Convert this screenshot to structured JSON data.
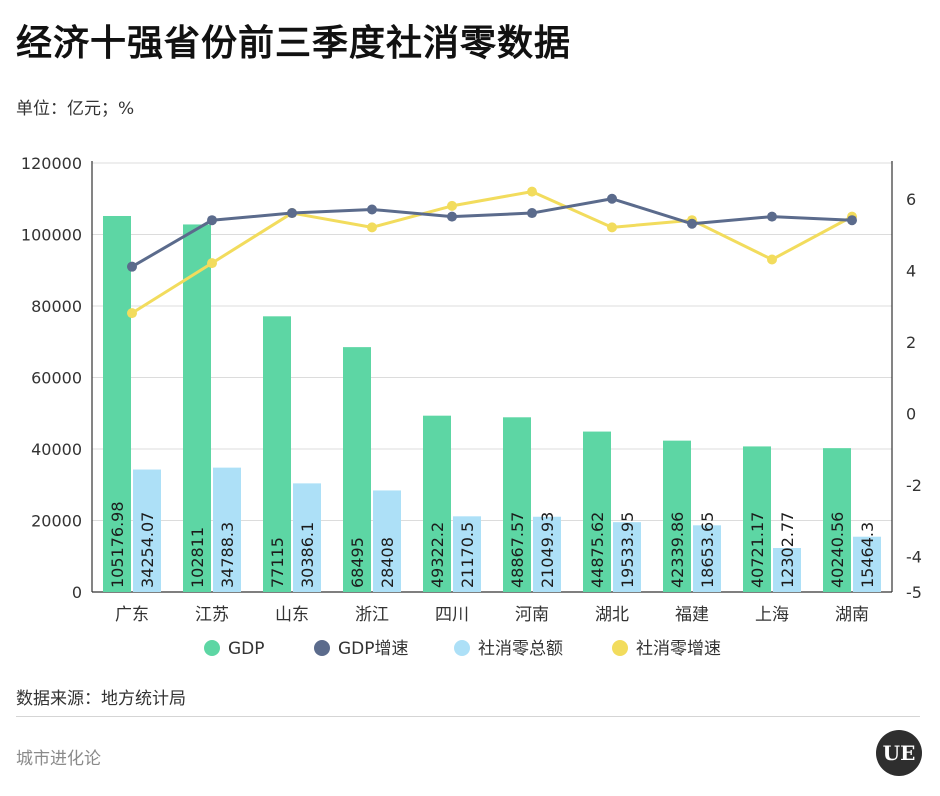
{
  "header": {
    "title": "经济十强省份前三季度社消零数据",
    "unit": "单位：亿元；%"
  },
  "footer": {
    "source": "数据来源：地方统计局",
    "brand": "城市进化论",
    "logo_text": "UE"
  },
  "colors": {
    "gdp": "#5dd6a4",
    "gdp_growth": "#5b6b8c",
    "retail": "#ade0f7",
    "retail_growth": "#f2dc5d",
    "grid": "#dcdcdc",
    "axis": "#333333"
  },
  "chart_data": {
    "type": "bar",
    "categories": [
      "广东",
      "江苏",
      "山东",
      "浙江",
      "四川",
      "河南",
      "湖北",
      "福建",
      "上海",
      "湖南"
    ],
    "ylim": [
      0,
      120000
    ],
    "yticks": [
      0,
      20000,
      40000,
      60000,
      80000,
      100000,
      120000
    ],
    "y2lim": [
      -5,
      7
    ],
    "y2ticks": [
      -5,
      -4,
      -2,
      0,
      2,
      4,
      6
    ],
    "grid": true,
    "legend_position": "bottom",
    "series": [
      {
        "name": "GDP",
        "kind": "bar",
        "axis": "left",
        "values": [
          105176.98,
          102811,
          77115,
          68495,
          49322.2,
          48867.57,
          44875.62,
          42339.86,
          40721.17,
          40240.56
        ],
        "labels": [
          "105176.98",
          "102811",
          "77115",
          "68495",
          "49322.2",
          "48867.57",
          "44875.62",
          "42339.86",
          "40721.17",
          "40240.56"
        ]
      },
      {
        "name": "GDP增速",
        "kind": "line",
        "axis": "right",
        "values": [
          4.1,
          5.4,
          5.6,
          5.7,
          5.5,
          5.6,
          6.0,
          5.3,
          5.5,
          5.4
        ]
      },
      {
        "name": "社消零总额",
        "kind": "bar",
        "axis": "left",
        "values": [
          34254.07,
          34788.3,
          30386.1,
          28408,
          21170.5,
          21049.93,
          19533.95,
          18653.65,
          12302.77,
          15464.3
        ],
        "labels": [
          "34254.07",
          "34788.3",
          "30386.1",
          "28408",
          "21170.5",
          "21049.93",
          "19533.95",
          "18653.65",
          "12302.77",
          "15464.3"
        ]
      },
      {
        "name": "社消零增速",
        "kind": "line",
        "axis": "right",
        "values": [
          2.8,
          4.2,
          5.6,
          5.2,
          5.8,
          6.2,
          5.2,
          5.4,
          4.3,
          5.5
        ]
      }
    ]
  }
}
